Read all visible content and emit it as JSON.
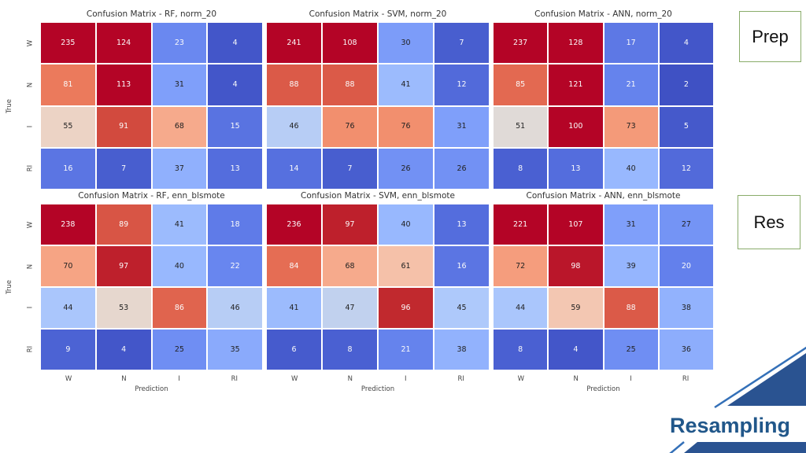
{
  "figure": {
    "annot_text_dark": "#222222",
    "annot_text_light": "#fafafa"
  },
  "chart_data": [
    {
      "type": "heatmap",
      "title": "Confusion Matrix - RF, norm_20",
      "x": [
        "W",
        "N",
        "I",
        "RI"
      ],
      "y": [
        "W",
        "N",
        "I",
        "RI"
      ],
      "xlabel": "Prediction",
      "ylabel": "True",
      "colormap": "coolwarm",
      "vmin": 0,
      "vmax": 100,
      "values": [
        [
          235,
          124,
          23,
          4
        ],
        [
          81,
          113,
          31,
          4
        ],
        [
          55,
          91,
          68,
          15
        ],
        [
          16,
          7,
          37,
          13
        ]
      ]
    },
    {
      "type": "heatmap",
      "title": "Confusion Matrix - SVM, norm_20",
      "x": [
        "W",
        "N",
        "I",
        "RI"
      ],
      "y": [
        "W",
        "N",
        "I",
        "RI"
      ],
      "xlabel": "Prediction",
      "ylabel": "True",
      "colormap": "coolwarm",
      "vmin": 0,
      "vmax": 100,
      "values": [
        [
          241,
          108,
          30,
          7
        ],
        [
          88,
          88,
          41,
          12
        ],
        [
          46,
          76,
          76,
          31
        ],
        [
          14,
          7,
          26,
          26
        ]
      ]
    },
    {
      "type": "heatmap",
      "title": "Confusion Matrix - ANN, norm_20",
      "x": [
        "W",
        "N",
        "I",
        "RI"
      ],
      "y": [
        "W",
        "N",
        "I",
        "RI"
      ],
      "xlabel": "Prediction",
      "ylabel": "True",
      "colormap": "coolwarm",
      "vmin": 0,
      "vmax": 100,
      "values": [
        [
          237,
          128,
          17,
          4
        ],
        [
          85,
          121,
          21,
          2
        ],
        [
          51,
          100,
          73,
          5
        ],
        [
          8,
          13,
          40,
          12
        ]
      ]
    },
    {
      "type": "heatmap",
      "title": "Confusion Matrix - RF, enn_blsmote",
      "x": [
        "W",
        "N",
        "I",
        "RI"
      ],
      "y": [
        "W",
        "N",
        "I",
        "RI"
      ],
      "xlabel": "Prediction",
      "ylabel": "True",
      "colormap": "coolwarm",
      "vmin": 0,
      "vmax": 100,
      "values": [
        [
          238,
          89,
          41,
          18
        ],
        [
          70,
          97,
          40,
          22
        ],
        [
          44,
          53,
          86,
          46
        ],
        [
          9,
          4,
          25,
          35
        ]
      ]
    },
    {
      "type": "heatmap",
      "title": "Confusion Matrix - SVM, enn_blsmote",
      "x": [
        "W",
        "N",
        "I",
        "RI"
      ],
      "y": [
        "W",
        "N",
        "I",
        "RI"
      ],
      "xlabel": "Prediction",
      "ylabel": "True",
      "colormap": "coolwarm",
      "vmin": 0,
      "vmax": 100,
      "values": [
        [
          236,
          97,
          40,
          13
        ],
        [
          84,
          68,
          61,
          16
        ],
        [
          41,
          47,
          96,
          45
        ],
        [
          6,
          8,
          21,
          38
        ]
      ]
    },
    {
      "type": "heatmap",
      "title": "Confusion Matrix - ANN, enn_blsmote",
      "x": [
        "W",
        "N",
        "I",
        "RI"
      ],
      "y": [
        "W",
        "N",
        "I",
        "RI"
      ],
      "xlabel": "Prediction",
      "ylabel": "True",
      "colormap": "coolwarm",
      "vmin": 0,
      "vmax": 100,
      "values": [
        [
          221,
          107,
          31,
          27
        ],
        [
          72,
          98,
          39,
          20
        ],
        [
          44,
          59,
          88,
          38
        ],
        [
          8,
          4,
          25,
          36
        ]
      ]
    }
  ],
  "side_labels": {
    "prep": "Prep",
    "res": "Res"
  },
  "footer": {
    "title": "Resampling"
  },
  "colors": {
    "box_border_green": "#8aac6a",
    "accent_dark_blue": "#2a5391",
    "accent_line_blue": "#3470b8",
    "footer_text_blue": "#21578a",
    "title_text": "#333333",
    "tick_text": "#444444"
  }
}
